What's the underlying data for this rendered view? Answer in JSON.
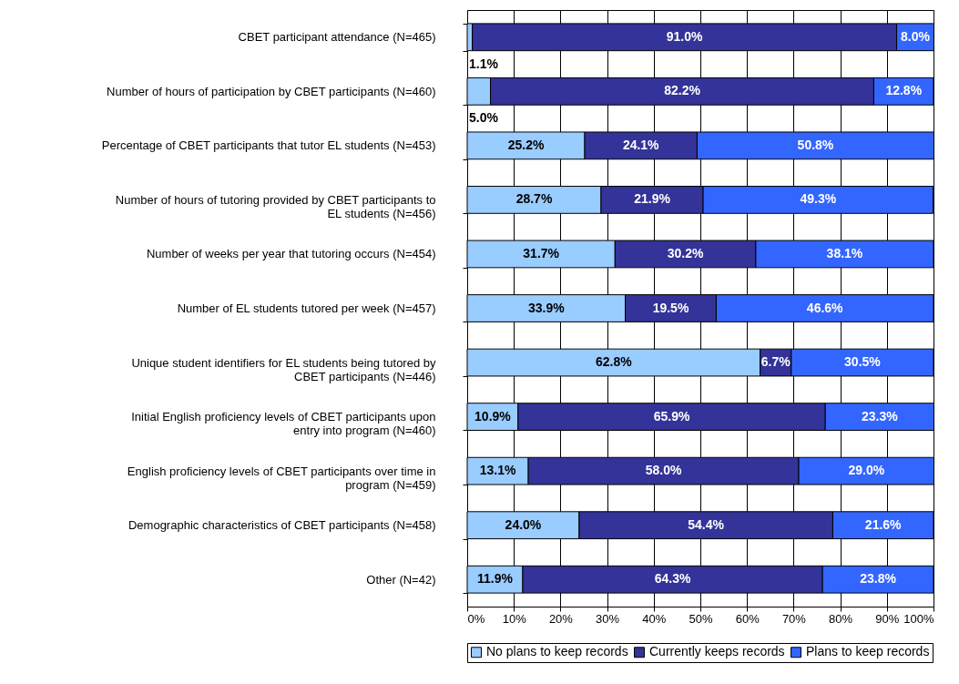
{
  "chart_data": {
    "type": "bar",
    "orientation": "horizontal",
    "stacked": true,
    "categories": [
      "CBET participant attendance (N=465)",
      "Number of hours of participation by CBET participants (N=460)",
      "Percentage of CBET participants that tutor EL students (N=453)",
      "Number of hours of tutoring provided by CBET participants to EL students (N=456)",
      "Number of weeks per year that tutoring occurs (N=454)",
      "Number of EL students tutored per week (N=457)",
      "Unique student identifiers for EL students being tutored by CBET participants (N=446)",
      "Initial English proficiency levels of CBET participants upon entry into program (N=460)",
      "English proficiency levels of CBET participants over time in program (N=459)",
      "Demographic characteristics of CBET participants (N=458)",
      "Other (N=42)"
    ],
    "series": [
      {
        "name": "No plans to keep records",
        "color": "#99ccff",
        "values": [
          1.1,
          5.0,
          25.2,
          28.7,
          31.7,
          33.9,
          62.8,
          10.9,
          13.1,
          24.0,
          11.9
        ],
        "value_labels": [
          "1.1%",
          "5.0%",
          "25.2%",
          "28.7%",
          "31.7%",
          "33.9%",
          "62.8%",
          "10.9%",
          "13.1%",
          "24.0%",
          "11.9%"
        ]
      },
      {
        "name": "Currently keeps records",
        "color": "#333399",
        "values": [
          91.0,
          82.2,
          24.1,
          21.9,
          30.2,
          19.5,
          6.7,
          65.9,
          58.0,
          54.4,
          64.3
        ],
        "value_labels": [
          "91.0%",
          "82.2%",
          "24.1%",
          "21.9%",
          "30.2%",
          "19.5%",
          "6.7%",
          "65.9%",
          "58.0%",
          "54.4%",
          "64.3%"
        ]
      },
      {
        "name": "Plans to keep records",
        "color": "#3366ff",
        "values": [
          8.0,
          12.8,
          50.8,
          49.3,
          38.1,
          46.6,
          30.5,
          23.3,
          29.0,
          21.6,
          23.8
        ],
        "value_labels": [
          "8.0%",
          "12.8%",
          "50.8%",
          "49.3%",
          "38.1%",
          "46.6%",
          "30.5%",
          "23.3%",
          "29.0%",
          "21.6%",
          "23.8%"
        ]
      }
    ],
    "xlim": [
      0,
      100
    ],
    "xticks": [
      {
        "value": 0,
        "label": "0%"
      },
      {
        "value": 10,
        "label": "10%"
      },
      {
        "value": 20,
        "label": "20%"
      },
      {
        "value": 30,
        "label": "30%"
      },
      {
        "value": 40,
        "label": "40%"
      },
      {
        "value": 50,
        "label": "50%"
      },
      {
        "value": 60,
        "label": "60%"
      },
      {
        "value": 70,
        "label": "70%"
      },
      {
        "value": 80,
        "label": "80%"
      },
      {
        "value": 90,
        "label": "90%"
      },
      {
        "value": 100,
        "label": "100%"
      }
    ],
    "grid": "x",
    "legend": "bottom"
  }
}
